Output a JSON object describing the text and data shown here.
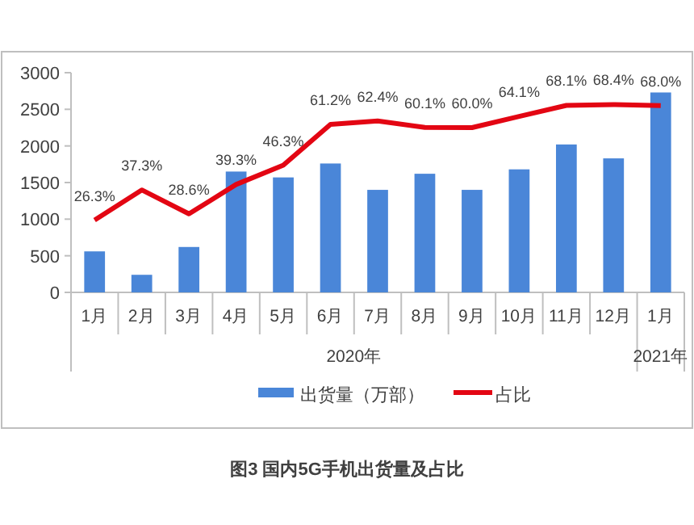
{
  "chart_data": {
    "type": "bar",
    "title": "图3 国内5G手机出货量及占比",
    "categories": [
      "1月",
      "2月",
      "3月",
      "4月",
      "5月",
      "6月",
      "7月",
      "8月",
      "9月",
      "10月",
      "11月",
      "12月",
      "1月"
    ],
    "series": [
      {
        "name": "出货量（万部）",
        "color": "#4a86d8",
        "values": [
          560,
          240,
          620,
          1650,
          1570,
          1760,
          1400,
          1620,
          1400,
          1680,
          2020,
          1830,
          2730
        ]
      },
      {
        "name": "占比",
        "type": "line",
        "axis": "y2",
        "color": "#e30613",
        "values": [
          26.3,
          37.3,
          28.6,
          39.3,
          46.3,
          61.2,
          62.4,
          60.1,
          60.0,
          64.1,
          68.1,
          68.4,
          68.0
        ],
        "value_labels": [
          "26.3%",
          "37.3%",
          "28.6%",
          "39.3%",
          "46.3%",
          "61.2%",
          "62.4%",
          "60.1%",
          "60.0%",
          "64.1%",
          "68.1%",
          "68.4%",
          "68.0%"
        ]
      }
    ],
    "ylim": [
      0,
      3000
    ],
    "yticks": [
      0,
      500,
      1000,
      1500,
      2000,
      2500,
      3000
    ],
    "y2lim": [
      0,
      80
    ],
    "annotations": [
      "2020年",
      "2021年"
    ],
    "legend": "bottom",
    "grid": false,
    "marker": "none",
    "line_style": "solid"
  }
}
